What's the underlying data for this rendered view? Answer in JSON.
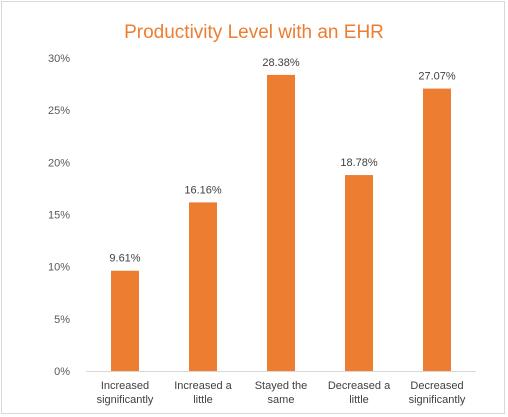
{
  "chart_data": {
    "type": "bar",
    "title": "Productivity Level with an EHR",
    "categories": [
      [
        "Increased",
        "significantly"
      ],
      [
        "Increased a",
        "little"
      ],
      [
        "Stayed the",
        "same"
      ],
      [
        "Decreased a",
        "little"
      ],
      [
        "Decreased",
        "significantly"
      ]
    ],
    "values": [
      9.61,
      16.16,
      28.38,
      18.78,
      27.07
    ],
    "data_labels": [
      "9.61%",
      "16.16%",
      "28.38%",
      "18.78%",
      "27.07%"
    ],
    "y_ticks": [
      0,
      5,
      10,
      15,
      20,
      25,
      30
    ],
    "y_tick_labels": [
      "0%",
      "5%",
      "10%",
      "15%",
      "20%",
      "25%",
      "30%"
    ],
    "ylim": [
      0,
      30
    ],
    "grid": false,
    "legend": "none",
    "colors": {
      "bar": "#ed7d31",
      "title": "#ed7d31",
      "axis": "#d9d9d9"
    }
  }
}
